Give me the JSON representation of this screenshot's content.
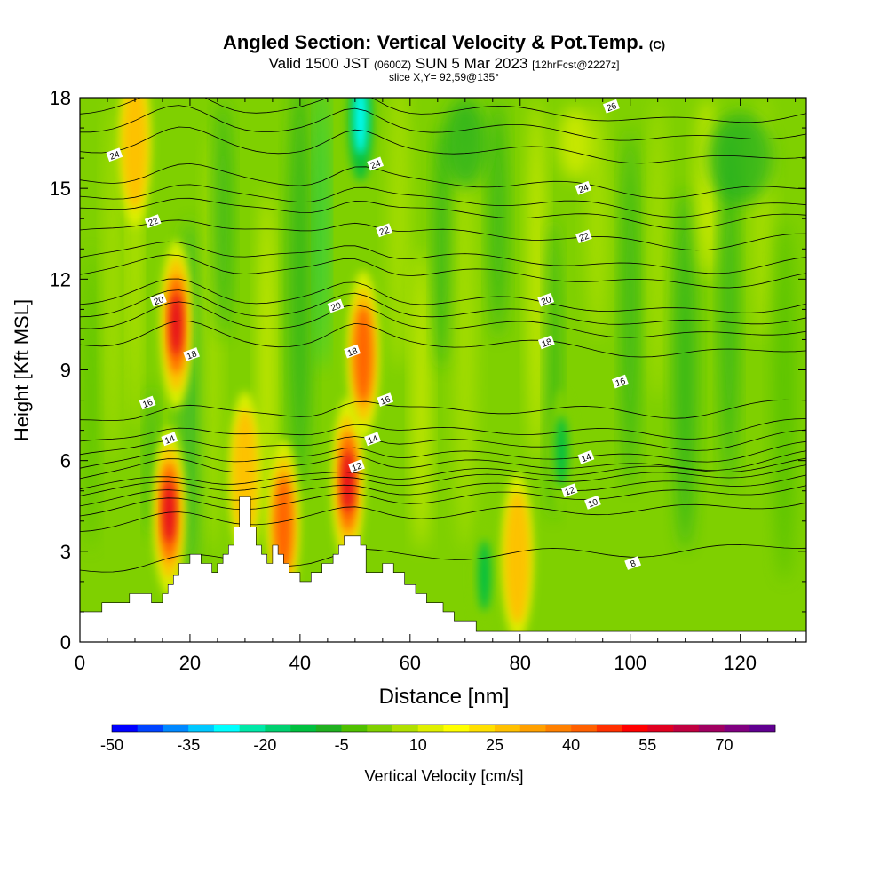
{
  "title": {
    "main": "Angled Section: Vertical Velocity & Pot.Temp.",
    "mark": "(C)",
    "valid_prefix": "Valid 1500 JST",
    "valid_zulu": "(0600Z)",
    "valid_date": "SUN 5 Mar 2023",
    "forecast": "[12hrFcst@2227z]",
    "slice": "slice X,Y= 92,59@135°"
  },
  "colorbar": {
    "label": "Vertical Velocity [cm/s]",
    "min": -50,
    "max": 80,
    "step": 5,
    "tick_labels": [
      "-50",
      "-35",
      "-20",
      "-5",
      "10",
      "25",
      "40",
      "55",
      "70"
    ],
    "colors": [
      "#0000ff",
      "#0044ff",
      "#0088ff",
      "#00c8ff",
      "#00ffff",
      "#00e8a8",
      "#00d070",
      "#00c040",
      "#20b020",
      "#50c000",
      "#80d000",
      "#b0e000",
      "#e0f000",
      "#ffff00",
      "#ffe000",
      "#ffc000",
      "#ffa000",
      "#ff8000",
      "#ff6000",
      "#ff3000",
      "#ff0000",
      "#e00020",
      "#c00040",
      "#a00060",
      "#800080",
      "#600090"
    ]
  },
  "chart_data": {
    "type": "heatmap",
    "xlabel": "Distance [nm]",
    "ylabel": "Height [Kft MSL]",
    "xlim": [
      0,
      132
    ],
    "ylim": [
      0,
      18
    ],
    "xticks": [
      0,
      20,
      40,
      60,
      80,
      100,
      120
    ],
    "yticks": [
      0,
      3,
      6,
      9,
      12,
      15,
      18
    ],
    "terrain": [
      [
        0,
        1
      ],
      [
        4,
        1
      ],
      [
        4,
        1.3
      ],
      [
        9,
        1.3
      ],
      [
        9,
        1.6
      ],
      [
        13,
        1.6
      ],
      [
        13,
        1.3
      ],
      [
        15,
        1.3
      ],
      [
        15,
        1.6
      ],
      [
        16,
        1.6
      ],
      [
        16,
        1.9
      ],
      [
        17,
        1.9
      ],
      [
        17,
        2.2
      ],
      [
        18,
        2.2
      ],
      [
        18,
        2.6
      ],
      [
        20,
        2.6
      ],
      [
        20,
        2.9
      ],
      [
        22,
        2.9
      ],
      [
        22,
        2.6
      ],
      [
        24,
        2.6
      ],
      [
        24,
        2.3
      ],
      [
        25,
        2.3
      ],
      [
        25,
        2.6
      ],
      [
        26,
        2.6
      ],
      [
        26,
        2.9
      ],
      [
        27,
        2.9
      ],
      [
        27,
        3.2
      ],
      [
        28,
        3.2
      ],
      [
        28,
        3.8
      ],
      [
        29,
        3.8
      ],
      [
        29,
        4.8
      ],
      [
        31,
        4.8
      ],
      [
        31,
        3.8
      ],
      [
        32,
        3.8
      ],
      [
        32,
        3.2
      ],
      [
        33,
        3.2
      ],
      [
        33,
        2.9
      ],
      [
        34,
        2.9
      ],
      [
        34,
        2.6
      ],
      [
        35,
        2.6
      ],
      [
        35,
        3.2
      ],
      [
        36,
        3.2
      ],
      [
        36,
        2.9
      ],
      [
        37,
        2.9
      ],
      [
        37,
        2.6
      ],
      [
        38,
        2.6
      ],
      [
        38,
        2.3
      ],
      [
        40,
        2.3
      ],
      [
        40,
        2.0
      ],
      [
        42,
        2.0
      ],
      [
        42,
        2.3
      ],
      [
        44,
        2.3
      ],
      [
        44,
        2.6
      ],
      [
        46,
        2.6
      ],
      [
        46,
        2.9
      ],
      [
        47,
        2.9
      ],
      [
        47,
        3.2
      ],
      [
        48,
        3.2
      ],
      [
        48,
        3.5
      ],
      [
        51,
        3.5
      ],
      [
        51,
        3.2
      ],
      [
        52,
        3.2
      ],
      [
        52,
        2.3
      ],
      [
        55,
        2.3
      ],
      [
        55,
        2.6
      ],
      [
        57,
        2.6
      ],
      [
        57,
        2.3
      ],
      [
        59,
        2.3
      ],
      [
        59,
        1.9
      ],
      [
        61,
        1.9
      ],
      [
        61,
        1.6
      ],
      [
        63,
        1.6
      ],
      [
        63,
        1.3
      ],
      [
        66,
        1.3
      ],
      [
        66,
        1.0
      ],
      [
        68,
        1.0
      ],
      [
        68,
        0.7
      ],
      [
        72,
        0.7
      ],
      [
        72,
        0.35
      ],
      [
        132,
        0.35
      ]
    ],
    "theta_levels": [
      8,
      10,
      12,
      14,
      16,
      18,
      20,
      22,
      24,
      26
    ],
    "theta_labels": [
      {
        "text": "24",
        "x": 6.3,
        "y": 16.1
      },
      {
        "text": "22",
        "x": 13.3,
        "y": 13.9
      },
      {
        "text": "20",
        "x": 14.3,
        "y": 11.3
      },
      {
        "text": "18",
        "x": 20.3,
        "y": 9.5
      },
      {
        "text": "16",
        "x": 12.3,
        "y": 7.9
      },
      {
        "text": "14",
        "x": 16.3,
        "y": 6.7
      },
      {
        "text": "24",
        "x": 53.7,
        "y": 15.8
      },
      {
        "text": "22",
        "x": 55.3,
        "y": 13.6
      },
      {
        "text": "20",
        "x": 46.5,
        "y": 11.1
      },
      {
        "text": "18",
        "x": 49.5,
        "y": 9.6
      },
      {
        "text": "16",
        "x": 55.5,
        "y": 8.0
      },
      {
        "text": "14",
        "x": 53.2,
        "y": 6.7
      },
      {
        "text": "12",
        "x": 50.3,
        "y": 5.8
      },
      {
        "text": "26",
        "x": 96.6,
        "y": 17.7
      },
      {
        "text": "24",
        "x": 91.5,
        "y": 15.0
      },
      {
        "text": "22",
        "x": 91.6,
        "y": 13.4
      },
      {
        "text": "20",
        "x": 84.7,
        "y": 11.3
      },
      {
        "text": "18",
        "x": 84.8,
        "y": 9.9
      },
      {
        "text": "16",
        "x": 98.2,
        "y": 8.6
      },
      {
        "text": "14",
        "x": 92.0,
        "y": 6.1
      },
      {
        "text": "12",
        "x": 89.0,
        "y": 5.0
      },
      {
        "text": "10",
        "x": 93.2,
        "y": 4.6
      },
      {
        "text": "8",
        "x": 100.5,
        "y": 2.6
      }
    ],
    "updraft_cores": [
      {
        "x": 17.5,
        "y": 10.5,
        "value": 60
      },
      {
        "x": 16.2,
        "y": 4.3,
        "value": 55
      },
      {
        "x": 48.7,
        "y": 5.3,
        "value": 60
      },
      {
        "x": 30.0,
        "y": 5.5,
        "value": 35
      },
      {
        "x": 37.0,
        "y": 3.9,
        "value": 40
      },
      {
        "x": 51.5,
        "y": 9.5,
        "value": 40
      },
      {
        "x": 79.5,
        "y": 2.8,
        "value": 25
      },
      {
        "x": 10.0,
        "y": 16.5,
        "value": 25
      }
    ],
    "downdraft_cores": [
      {
        "x": 51.0,
        "y": 17.3,
        "value": -30
      },
      {
        "x": 73.5,
        "y": 2.2,
        "value": -15
      },
      {
        "x": 87.5,
        "y": 6.3,
        "value": -15
      }
    ]
  }
}
